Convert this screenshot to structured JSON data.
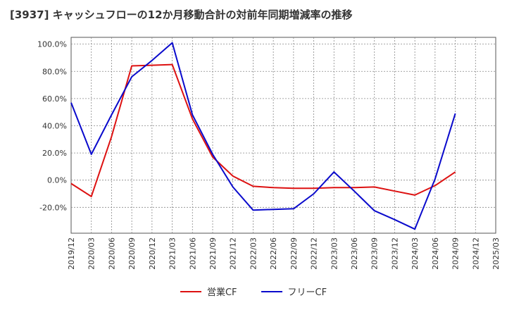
{
  "chart_data": {
    "type": "line",
    "title": "[3937]  キャッシュフローの12か月移動合計の対前年同期増減率の推移",
    "xlabel": "",
    "ylabel": "",
    "ylim": [
      -39,
      105
    ],
    "yticks": [
      100,
      80,
      60,
      40,
      20,
      0,
      -20
    ],
    "ytick_labels": [
      "100.0%",
      "80.0%",
      "60.0%",
      "40.0%",
      "20.0%",
      "0.0%",
      "-20.0%"
    ],
    "categories": [
      "2019/12",
      "2020/03",
      "2020/06",
      "2020/09",
      "2020/12",
      "2021/03",
      "2021/06",
      "2021/09",
      "2021/12",
      "2022/03",
      "2022/06",
      "2022/09",
      "2022/12",
      "2023/03",
      "2023/06",
      "2023/09",
      "2023/12",
      "2024/03",
      "2024/06",
      "2024/09",
      "2024/12",
      "2025/03"
    ],
    "grid": true,
    "legend_position": "bottom-center",
    "series": [
      {
        "name": "営業CF",
        "color": "#dd1111",
        "values": [
          -2.5,
          -12,
          32,
          84,
          84.5,
          85,
          45,
          17,
          3,
          -4.5,
          -5.5,
          -6,
          -6,
          -5.5,
          -5.5,
          -5,
          -8,
          -11,
          -4,
          6,
          null,
          null
        ]
      },
      {
        "name": "フリーCF",
        "color": "#0a0acc",
        "values": [
          57,
          19,
          48,
          76,
          88,
          101,
          48,
          19,
          -5,
          -22,
          -21.5,
          -21,
          -10,
          6,
          -8,
          -22.5,
          -29,
          -36,
          1,
          49,
          null,
          null
        ]
      }
    ]
  }
}
